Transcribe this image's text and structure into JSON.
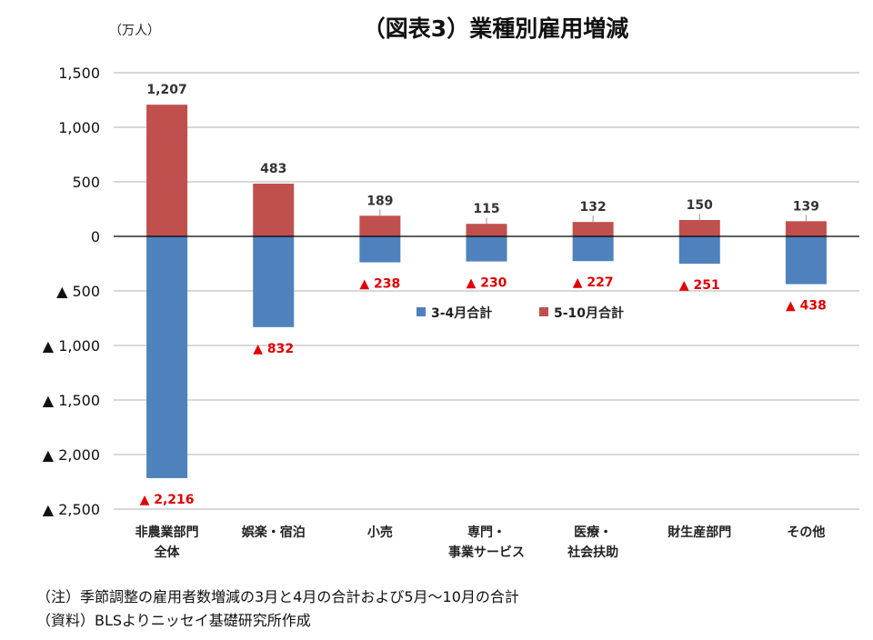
{
  "chart_data": {
    "type": "bar",
    "title": "（図表3）業種別雇用増減",
    "unit_label": "（万人）",
    "categories": [
      [
        "非農業部門",
        "全体"
      ],
      [
        "娯楽・宿泊"
      ],
      [
        "小売"
      ],
      [
        "専門・",
        "事業サービス"
      ],
      [
        "医療・",
        "社会扶助"
      ],
      [
        "財生産部門"
      ],
      [
        "その他"
      ]
    ],
    "series": [
      {
        "name": "3-4月合計",
        "values": [
          -2216,
          -832,
          -238,
          -230,
          -227,
          -251,
          -438
        ],
        "color": "#4f81bd"
      },
      {
        "name": "5-10月合計",
        "values": [
          1207,
          483,
          189,
          115,
          132,
          150,
          139
        ],
        "color": "#c0504d"
      }
    ],
    "pos_labels": [
      "1,207",
      "483",
      "189",
      "115",
      "132",
      "150",
      "139"
    ],
    "neg_labels": [
      "▲ 2,216",
      "▲ 832",
      "▲ 238",
      "▲ 230",
      "▲ 227",
      "▲ 251",
      "▲ 438"
    ],
    "ylim": [
      -2500,
      1500
    ],
    "yticks": [
      1500,
      1000,
      500,
      0,
      -500,
      -1000,
      -1500,
      -2000,
      -2500
    ],
    "ytick_labels": [
      "1,500",
      "1,000",
      "500",
      "0",
      "▲ 500",
      "▲ 1,000",
      "▲ 1,500",
      "▲ 2,000",
      "▲ 2,500"
    ],
    "grid": true,
    "legend_position": "center-right"
  },
  "notes": {
    "note1": "（注）季節調整の雇用者数増減の3月と4月の合計および5月～10月の合計",
    "note2": "（資料）BLSよりニッセイ基礎研究所作成"
  }
}
